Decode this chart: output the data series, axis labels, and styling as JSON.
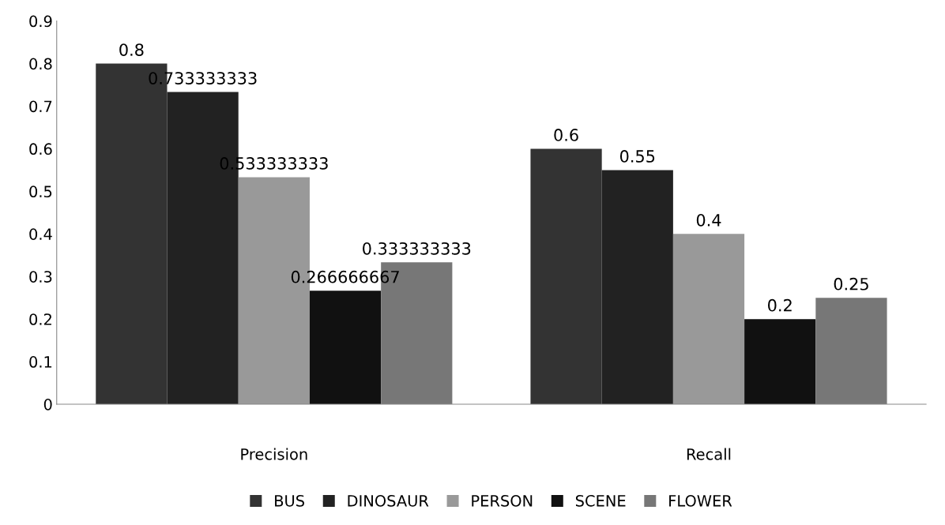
{
  "chart_data": {
    "type": "bar",
    "categories": [
      "Precision",
      "Recall"
    ],
    "series": [
      {
        "name": "BUS",
        "color": "#333333",
        "values": [
          0.8,
          0.6
        ]
      },
      {
        "name": "DINOSAUR",
        "color": "#222222",
        "values": [
          0.733333333,
          0.55
        ]
      },
      {
        "name": "PERSON",
        "color": "#999999",
        "values": [
          0.533333333,
          0.4
        ]
      },
      {
        "name": "SCENE",
        "color": "#111111",
        "values": [
          0.266666667,
          0.2
        ]
      },
      {
        "name": "FLOWER",
        "color": "#777777",
        "values": [
          0.333333333,
          0.25
        ]
      }
    ],
    "ylim": [
      0,
      0.9
    ],
    "yticks": [
      0,
      0.1,
      0.2,
      0.3,
      0.4,
      0.5,
      0.6,
      0.7,
      0.8,
      0.9
    ],
    "data_labels": true,
    "grid": false,
    "legend": "bottom"
  }
}
